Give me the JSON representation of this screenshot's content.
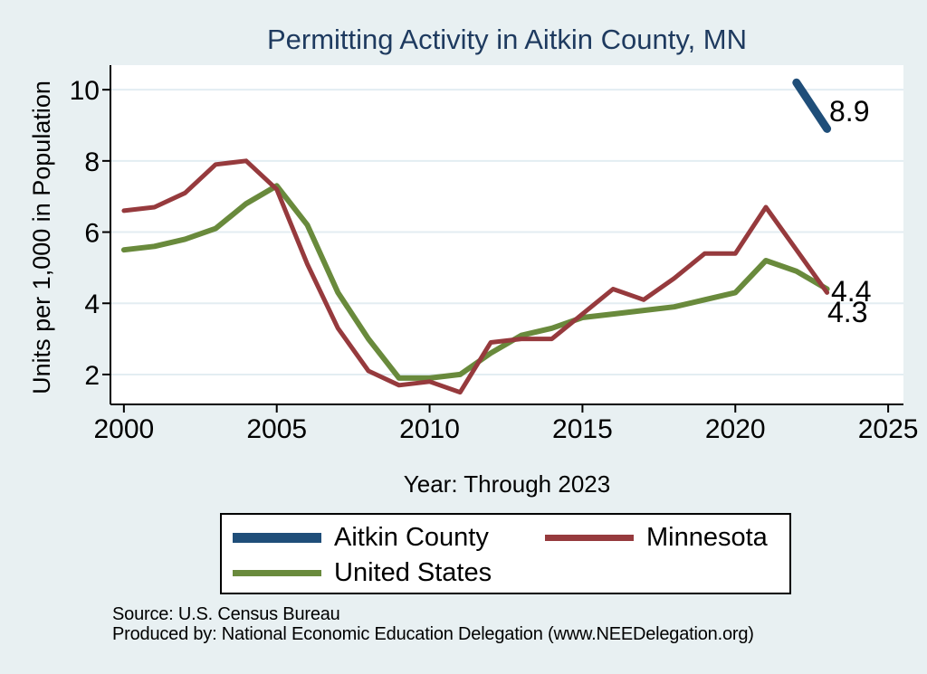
{
  "title": "Permitting Activity in Aitkin County, MN",
  "colors": {
    "background": "#e8f0f2",
    "plot_bg": "#ffffff",
    "grid": "#e3edf2",
    "axis": "#000000",
    "title_text": "#1e3a5f",
    "aitkin_county": "#1f4e79",
    "minnesota": "#963a3d",
    "united_states": "#698a3c"
  },
  "legend": {
    "items": [
      {
        "label": "Aitkin County",
        "color": "#1f4e79",
        "thickness": 11
      },
      {
        "label": "Minnesota",
        "color": "#963a3d",
        "thickness": 7
      },
      {
        "label": "United States",
        "color": "#698a3c",
        "thickness": 7
      }
    ]
  },
  "footer": {
    "source": "Source: U.S. Census Bureau",
    "produced_by": "Produced by: National Economic Education Delegation (www.NEEDelegation.org)"
  },
  "chart_data": {
    "type": "line",
    "title": "Permitting Activity in Aitkin County, MN",
    "xlabel": "Year: Through 2023",
    "ylabel": "Units per 1,000 in Population",
    "x": [
      2000,
      2001,
      2002,
      2003,
      2004,
      2005,
      2006,
      2007,
      2008,
      2009,
      2010,
      2011,
      2012,
      2013,
      2014,
      2015,
      2016,
      2017,
      2018,
      2019,
      2020,
      2021,
      2022,
      2023
    ],
    "series": [
      {
        "name": "Aitkin County",
        "color": "#1f4e79",
        "line_width": 9,
        "end_label": "8.9",
        "values": [
          null,
          null,
          null,
          null,
          null,
          null,
          null,
          null,
          null,
          null,
          null,
          null,
          null,
          null,
          null,
          null,
          null,
          null,
          null,
          null,
          null,
          null,
          10.2,
          8.9
        ]
      },
      {
        "name": "United States",
        "color": "#698a3c",
        "line_width": 6,
        "end_label": "4.4",
        "values": [
          5.5,
          5.6,
          5.8,
          6.1,
          6.8,
          7.3,
          6.2,
          4.3,
          3.0,
          1.9,
          1.9,
          2.0,
          2.6,
          3.1,
          3.3,
          3.6,
          3.7,
          3.8,
          3.9,
          4.1,
          4.3,
          5.2,
          4.9,
          4.4
        ]
      },
      {
        "name": "Minnesota",
        "color": "#963a3d",
        "line_width": 5,
        "end_label": "4.3",
        "values": [
          6.6,
          6.7,
          7.1,
          7.9,
          8.0,
          7.2,
          5.1,
          3.3,
          2.1,
          1.7,
          1.8,
          1.5,
          2.9,
          3.0,
          3.0,
          3.7,
          4.4,
          4.1,
          4.7,
          5.4,
          5.4,
          6.7,
          5.5,
          4.3
        ]
      }
    ],
    "xticks": [
      2000,
      2005,
      2010,
      2015,
      2020,
      2025
    ],
    "yticks": [
      2,
      4,
      6,
      8,
      10
    ],
    "xlim": [
      1999.56,
      2025.5
    ],
    "ylim": [
      1.16,
      10.69
    ],
    "grid": "horizontal-only",
    "legend_position": "below"
  }
}
